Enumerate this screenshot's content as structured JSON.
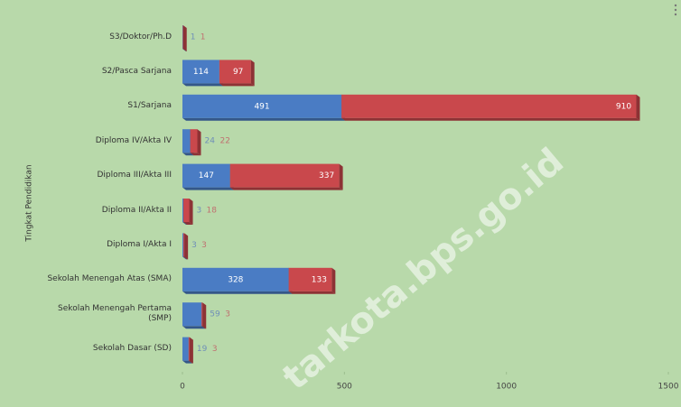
{
  "chart_data": {
    "type": "bar",
    "orientation": "horizontal",
    "stacked": true,
    "y_label": "Tingkat Pendidikan",
    "watermark": "tarkota.bps.go.id",
    "categories": [
      "S3/Doktor/Ph.D",
      "S2/Pasca Sarjana",
      "S1/Sarjana",
      "Diploma IV/Akta IV",
      "Diploma III/Akta III",
      "Diploma II/Akta II",
      "Diploma I/Akta I",
      "Sekolah Menengah Atas (SMA)",
      "Sekolah Menengah Pertama (SMP)",
      "Sekolah Dasar (SD)"
    ],
    "series": [
      {
        "color": "#4a7cc4",
        "values": [
          1,
          114,
          491,
          24,
          147,
          3,
          3,
          328,
          59,
          19
        ]
      },
      {
        "color": "#c9484c",
        "values": [
          1,
          97,
          910,
          22,
          337,
          18,
          3,
          133,
          3,
          3
        ]
      }
    ],
    "xlim": [
      0,
      1500
    ],
    "xticks": [
      0,
      500,
      1000,
      1500
    ]
  }
}
